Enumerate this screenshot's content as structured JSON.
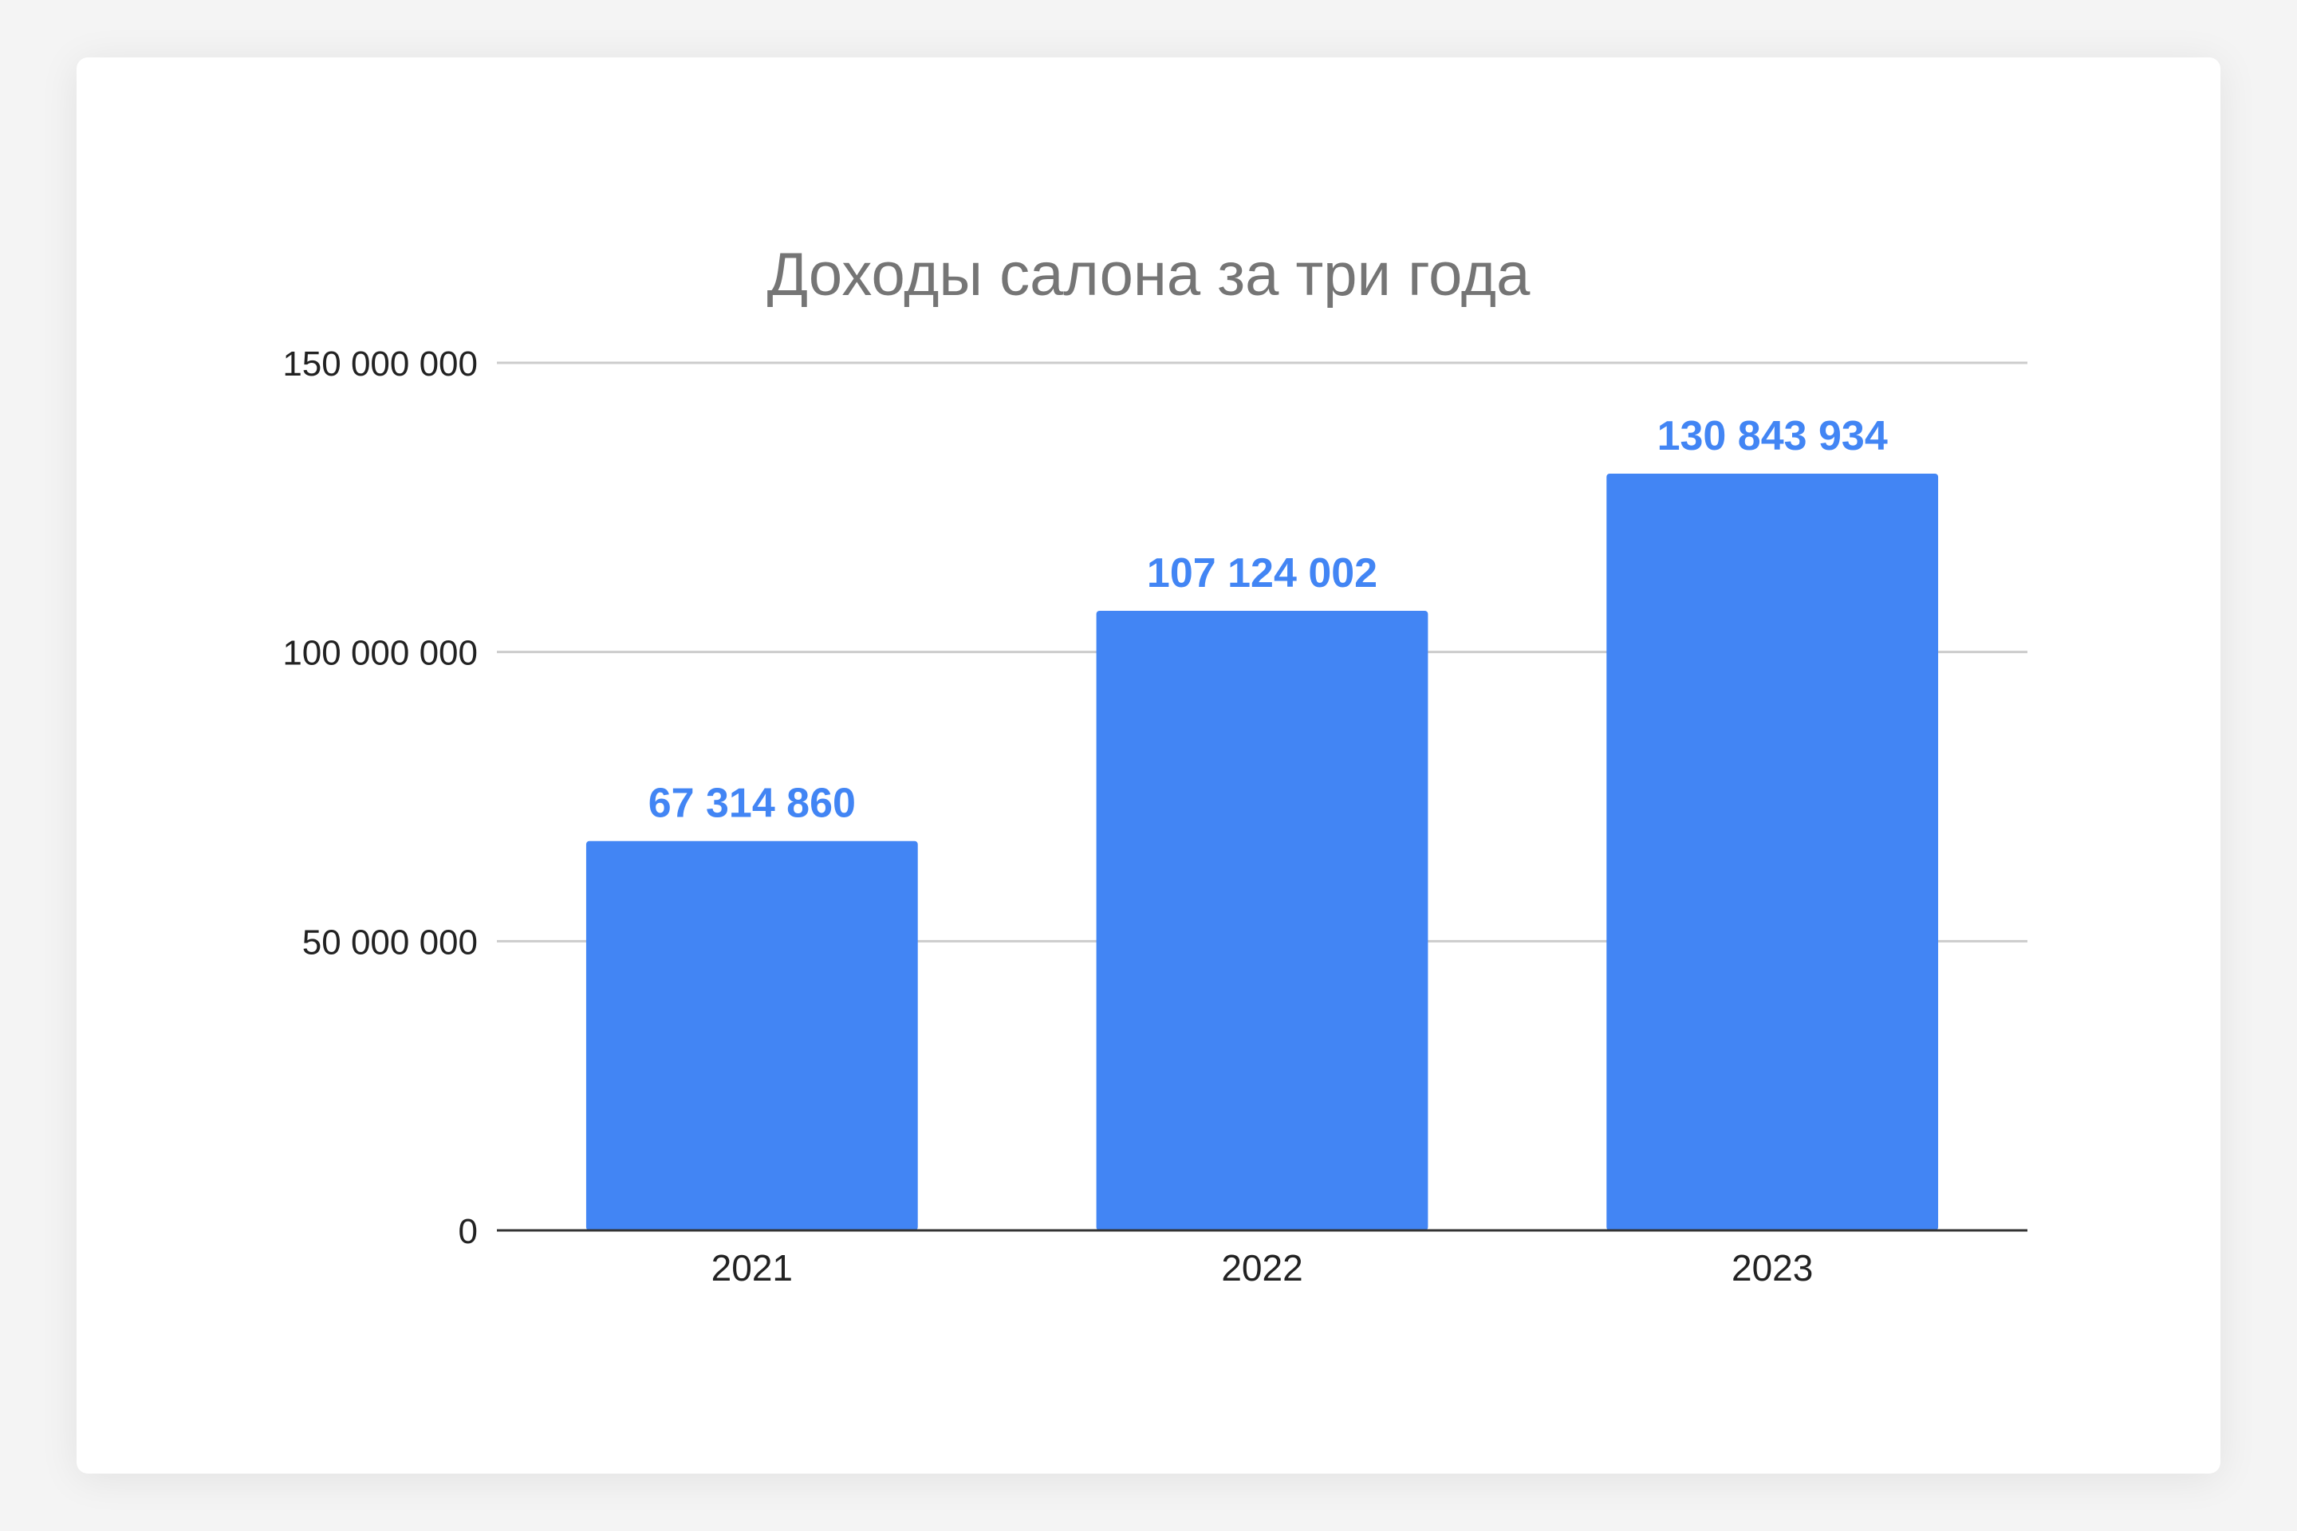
{
  "chart_data": {
    "type": "bar",
    "title": "Доходы салона за три года",
    "xlabel": "",
    "ylabel": "",
    "categories": [
      "2021",
      "2022",
      "2023"
    ],
    "values": [
      67314860,
      107124002,
      130843934
    ],
    "data_labels": [
      "67 314 860",
      "107 124 002",
      "130 843 934"
    ],
    "ylim": [
      0,
      150000000
    ],
    "y_ticks": [
      0,
      50000000,
      100000000,
      150000000
    ],
    "y_tick_labels": [
      "0",
      "50 000 000",
      "100 000 000",
      "150 000 000"
    ],
    "grid": true,
    "legend": "none",
    "colors": {
      "bar": "#4285f4",
      "data_label": "#4285f4",
      "grid": "#cccccc",
      "axis": "#333333",
      "title": "#757575"
    }
  }
}
